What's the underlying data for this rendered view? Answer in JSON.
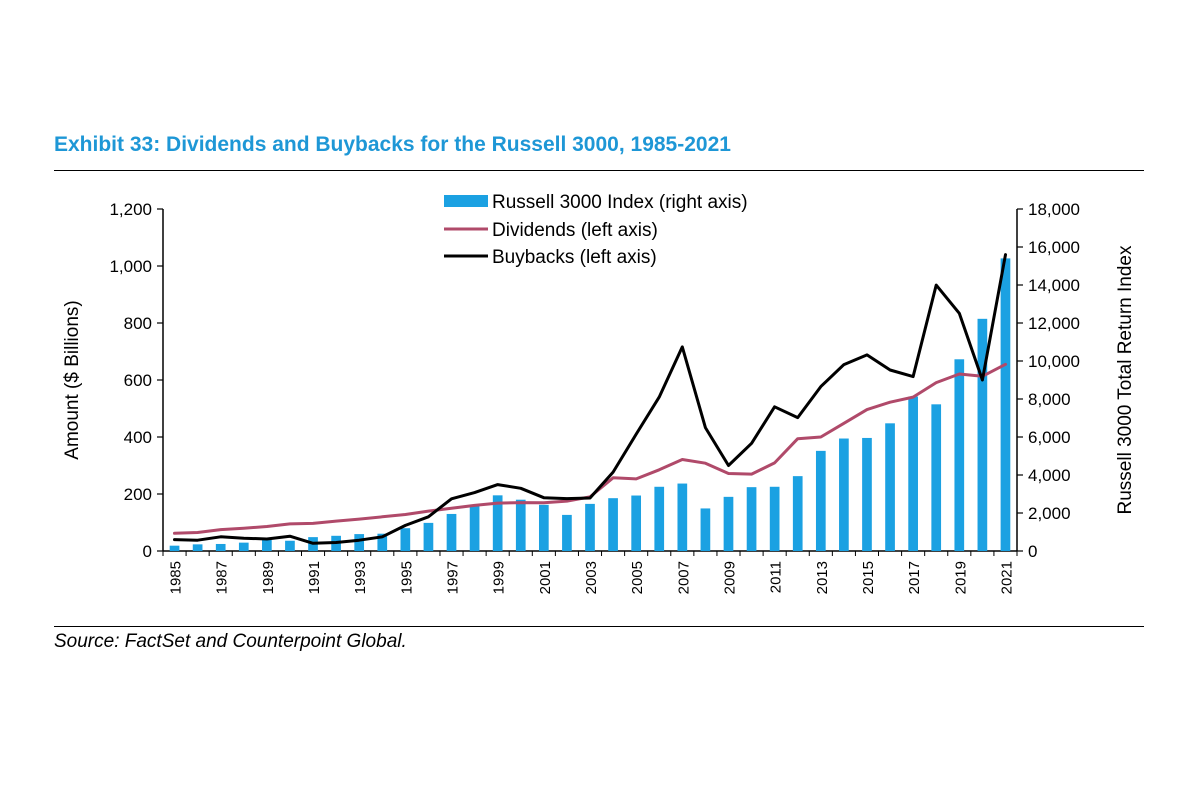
{
  "header": {
    "title": "Exhibit 33: Dividends and Buybacks for the Russell 3000, 1985-2021"
  },
  "footer": {
    "source": "Source: FactSet and Counterpoint Global."
  },
  "colors": {
    "title": "#1e97d6",
    "bars": "#1ba1e2",
    "dividends": "#b04a6a",
    "buybacks": "#000000"
  },
  "chart_data": {
    "type": "bar",
    "ylabel_left": "Amount ($ Billions)",
    "ylabel_right": "Russell 3000 Total Return Index",
    "ylim_left": [
      0,
      1200
    ],
    "ylim_right": [
      0,
      18000
    ],
    "left_ticks": [
      "0",
      "200",
      "400",
      "600",
      "800",
      "1,000",
      "1,200"
    ],
    "right_ticks": [
      "0",
      "2,000",
      "4,000",
      "6,000",
      "8,000",
      "10,000",
      "12,000",
      "14,000",
      "16,000",
      "18,000"
    ],
    "legend_position": "top-center",
    "categories": [
      "1985",
      "1986",
      "1987",
      "1988",
      "1989",
      "1990",
      "1991",
      "1992",
      "1993",
      "1994",
      "1995",
      "1996",
      "1997",
      "1998",
      "1999",
      "2000",
      "2001",
      "2002",
      "2003",
      "2004",
      "2005",
      "2006",
      "2007",
      "2008",
      "2009",
      "2010",
      "2011",
      "2012",
      "2013",
      "2014",
      "2015",
      "2016",
      "2017",
      "2018",
      "2019",
      "2020",
      "2021"
    ],
    "x_tick_labels": [
      "1985",
      "1987",
      "1989",
      "1991",
      "1993",
      "1995",
      "1997",
      "1999",
      "2001",
      "2003",
      "2005",
      "2007",
      "2009",
      "2011",
      "2013",
      "2015",
      "2017",
      "2019",
      "2021"
    ],
    "series": [
      {
        "name": "Russell 3000 Index (right axis)",
        "axis": "right",
        "type": "bar",
        "values": [
          280,
          350,
          370,
          440,
          580,
          540,
          730,
          800,
          890,
          910,
          1200,
          1480,
          1950,
          2420,
          2930,
          2700,
          2430,
          1900,
          2480,
          2780,
          2920,
          3380,
          3550,
          2240,
          2850,
          3360,
          3380,
          3940,
          5270,
          5920,
          5950,
          6720,
          8130,
          7720,
          10090,
          12220,
          15400
        ]
      },
      {
        "name": "Dividends (left axis)",
        "axis": "left",
        "type": "line",
        "values": [
          62,
          65,
          75,
          80,
          86,
          95,
          97,
          105,
          112,
          120,
          128,
          140,
          150,
          160,
          168,
          170,
          169,
          175,
          190,
          257,
          253,
          285,
          321,
          308,
          272,
          270,
          309,
          394,
          400,
          448,
          496,
          522,
          540,
          591,
          621,
          613,
          655
        ]
      },
      {
        "name": "Buybacks (left axis)",
        "axis": "left",
        "type": "line",
        "values": [
          40,
          38,
          50,
          45,
          42,
          52,
          27,
          30,
          38,
          50,
          90,
          120,
          183,
          205,
          233,
          220,
          187,
          184,
          186,
          277,
          410,
          540,
          716,
          433,
          300,
          378,
          506,
          468,
          577,
          654,
          688,
          635,
          612,
          933,
          834,
          600,
          1040
        ]
      }
    ]
  }
}
